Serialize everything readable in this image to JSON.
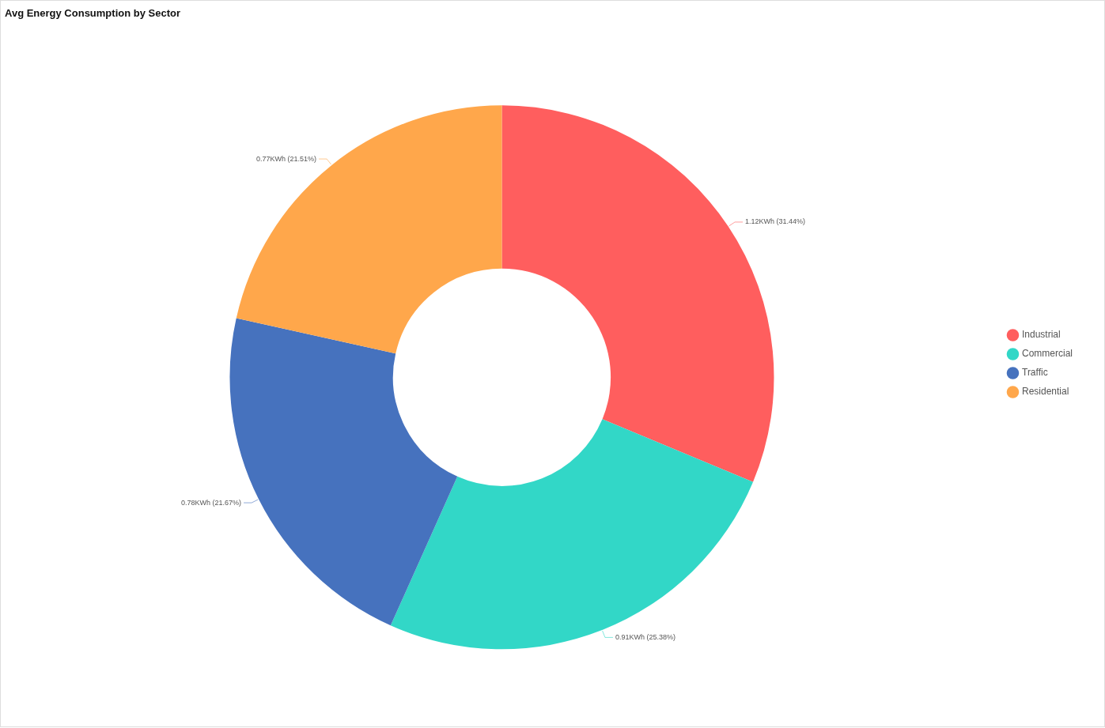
{
  "chart_data": {
    "type": "donut",
    "title": "Avg Energy Consumption by Sector",
    "categories": [
      "Industrial",
      "Commercial",
      "Traffic",
      "Residential"
    ],
    "values": [
      1.12,
      0.91,
      0.78,
      0.77
    ],
    "colors": [
      "#ff5e5e",
      "#32d7c7",
      "#4672be",
      "#ffa74b"
    ],
    "value_labels": [
      "1.12KWh (31.44%)",
      "0.91KWh (25.38%)",
      "0.78KWh (21.67%)",
      "0.77KWh (21.51%)"
    ],
    "legend": "right"
  }
}
